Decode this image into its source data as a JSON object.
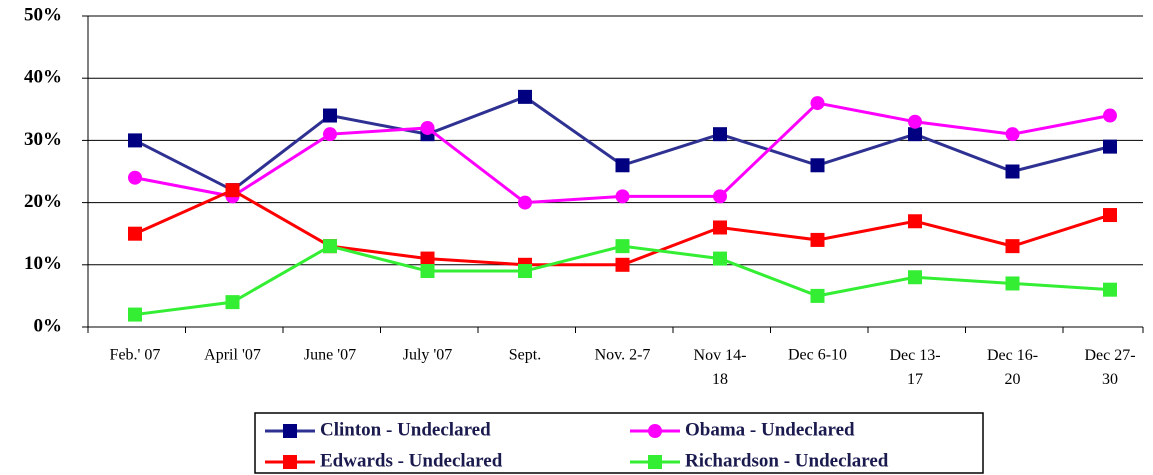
{
  "chart_data": {
    "type": "line",
    "categories": [
      "Feb.' 07",
      "April '07",
      "June '07",
      "July '07",
      "Sept.",
      "Nov. 2-7",
      "Nov 14-18",
      "Dec 6-10",
      "Dec 13-17",
      "Dec 16-20",
      "Dec 27-30"
    ],
    "series": [
      {
        "name": "Clinton - Undeclared",
        "color": "#2e3192",
        "marker": "square",
        "values": [
          30,
          22,
          34,
          31,
          37,
          26,
          31,
          26,
          31,
          25,
          29
        ]
      },
      {
        "name": "Obama - Undeclared",
        "color": "#ff00ff",
        "marker": "circle",
        "values": [
          24,
          21,
          31,
          32,
          20,
          21,
          21,
          36,
          33,
          31,
          34
        ]
      },
      {
        "name": "Edwards - Undeclared",
        "color": "#ff0000",
        "marker": "square",
        "values": [
          15,
          22,
          13,
          11,
          10,
          10,
          16,
          14,
          17,
          13,
          18
        ]
      },
      {
        "name": "Richardson - Undeclared",
        "color": "#33ee33",
        "marker": "square",
        "values": [
          2,
          4,
          13,
          9,
          9,
          13,
          11,
          5,
          8,
          7,
          6
        ]
      }
    ],
    "ylim": [
      0,
      50
    ],
    "yticks": [
      {
        "value": 0,
        "label": "0%"
      },
      {
        "value": 10,
        "label": "10%"
      },
      {
        "value": 20,
        "label": "20%"
      },
      {
        "value": 30,
        "label": "30%"
      },
      {
        "value": 40,
        "label": "40%"
      },
      {
        "value": 50,
        "label": "50%"
      }
    ],
    "grid": true,
    "legend": "bottom"
  }
}
